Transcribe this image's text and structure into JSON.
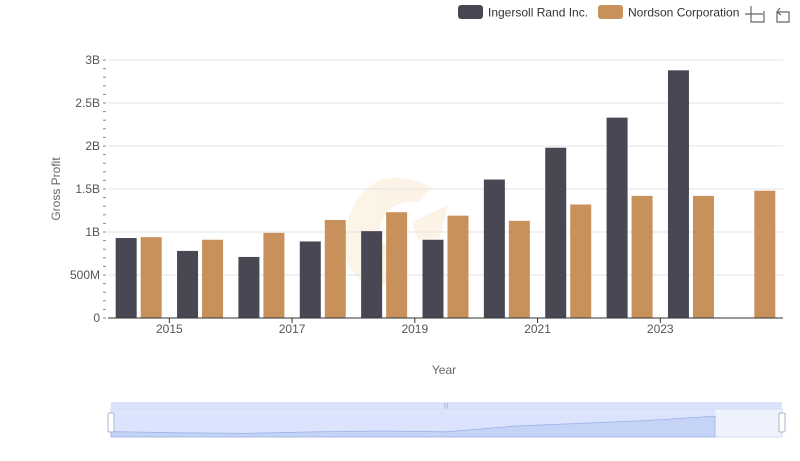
{
  "chart_data": {
    "type": "bar",
    "categories": [
      "2014",
      "2015",
      "2016",
      "2017",
      "2018",
      "2019",
      "2020",
      "2021",
      "2022",
      "2023",
      "2024"
    ],
    "x_tick_labels": [
      "2015",
      "2017",
      "2019",
      "2021",
      "2023"
    ],
    "series": [
      {
        "name": "Ingersoll Rand Inc.",
        "color": "#484854",
        "values": [
          0.93,
          0.78,
          0.71,
          0.89,
          1.01,
          0.91,
          1.61,
          1.98,
          2.33,
          2.88,
          null
        ]
      },
      {
        "name": "Nordson Corporation",
        "color": "#c8915c",
        "values": [
          0.94,
          0.91,
          0.99,
          1.14,
          1.23,
          1.19,
          1.13,
          1.32,
          1.42,
          1.42,
          1.48
        ]
      }
    ],
    "y_ticks": [
      {
        "value": 0,
        "label": "0"
      },
      {
        "value": 0.5,
        "label": "500M"
      },
      {
        "value": 1,
        "label": "1B"
      },
      {
        "value": 1.5,
        "label": "1.5B"
      },
      {
        "value": 2,
        "label": "2B"
      },
      {
        "value": 2.5,
        "label": "2.5B"
      },
      {
        "value": 3,
        "label": "3B"
      }
    ],
    "ylim": [
      0,
      3
    ],
    "xlabel": "Year",
    "ylabel": "Gross Profit",
    "legend_position": "top-right",
    "grid": true
  },
  "toolbar": {
    "icons": [
      "zoom-select-icon",
      "restore-icon"
    ]
  },
  "datazoom": {
    "fill_color": "#dbe4fb",
    "handle_label": "|||"
  }
}
